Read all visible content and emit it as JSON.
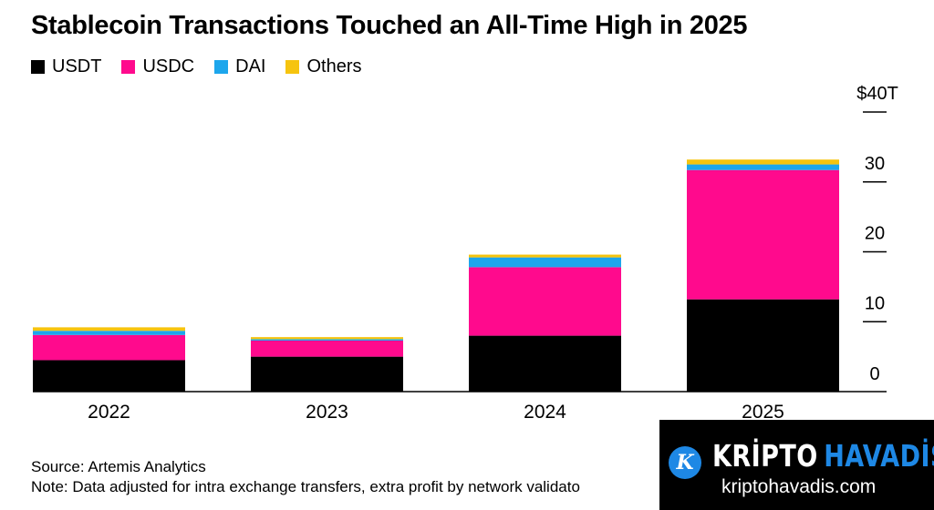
{
  "chart_data": {
    "type": "bar",
    "stacked": true,
    "title": "Stablecoin Transactions Touched an All-Time High in 2025",
    "categories": [
      "2022",
      "2023",
      "2024",
      "2025"
    ],
    "series": [
      {
        "name": "USDT",
        "color": "#000000",
        "values": [
          4.5,
          5.0,
          8.0,
          13.2
        ]
      },
      {
        "name": "USDC",
        "color": "#ff0a8d",
        "values": [
          3.6,
          2.3,
          9.8,
          18.5
        ]
      },
      {
        "name": "DAI",
        "color": "#1da6ec",
        "values": [
          0.6,
          0.2,
          1.4,
          0.8
        ]
      },
      {
        "name": "Others",
        "color": "#f6c40f",
        "values": [
          0.5,
          0.3,
          0.4,
          0.7
        ]
      }
    ],
    "ylim": [
      0,
      40
    ],
    "yticks": [
      0,
      10,
      20,
      30,
      40
    ],
    "ytick_labels": [
      "0",
      "10",
      "20",
      "30",
      "$40T"
    ],
    "xlabel": "",
    "ylabel": "",
    "legend_position": "top-left",
    "y_axis_side": "right",
    "grid": false
  },
  "footer": {
    "source": "Source: Artemis Analytics",
    "note": "Note: Data adjusted for intra exchange transfers, extra profit by network validato"
  },
  "watermark": {
    "brand_part1": "KRİPTO",
    "brand_part2": "HAVADİS",
    "url": "kriptohavadis.com",
    "logo_letter": "K"
  }
}
